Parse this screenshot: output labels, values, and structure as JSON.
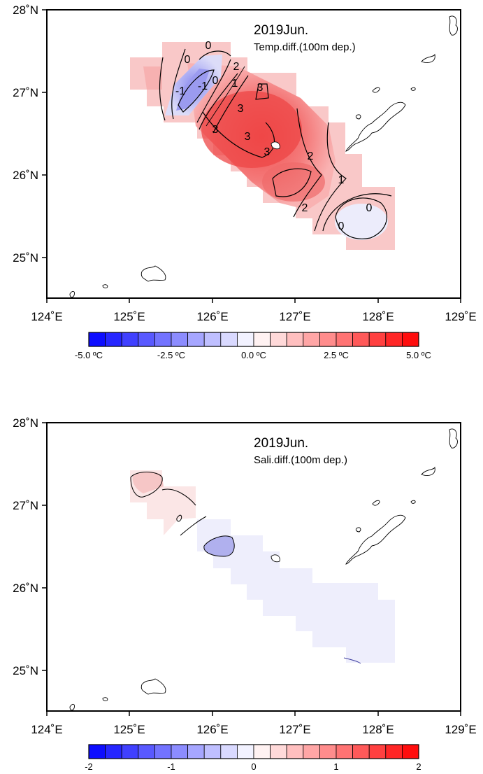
{
  "panels": [
    {
      "title": "2019Jun.",
      "subtitle": "Temp.diff.(100m dep.)",
      "lat_labels": [
        "28˚N",
        "27˚N",
        "26˚N",
        "25˚N"
      ],
      "lon_labels": [
        "124˚E",
        "125˚E",
        "126˚E",
        "127˚E",
        "128˚E",
        "129˚E"
      ],
      "contour_labels": [
        "0",
        "0",
        "-1",
        "-1",
        "0",
        "1",
        "2",
        "3",
        "3",
        "3",
        "3",
        "3",
        "2",
        "1",
        "2",
        "0",
        "0"
      ],
      "colorbar": {
        "min": -5.0,
        "max": 5.0,
        "step": 0.5,
        "labels": [
          "-5.0 ºC",
          "-2.5 ºC",
          "0.0 ºC",
          "2.5 ºC",
          "5.0 ºC"
        ]
      }
    },
    {
      "title": "2019Jun.",
      "subtitle": "Sali.diff.(100m dep.)",
      "lat_labels": [
        "28˚N",
        "27˚N",
        "26˚N",
        "25˚N"
      ],
      "lon_labels": [
        "124˚E",
        "125˚E",
        "126˚E",
        "127˚E",
        "128˚E",
        "129˚E"
      ],
      "colorbar": {
        "min": -2,
        "max": 2,
        "step": 0.2,
        "labels": [
          "-2",
          "-1",
          "0",
          "1",
          "2"
        ]
      }
    }
  ],
  "colors": {
    "negative": "#0000ff",
    "positive": "#ff0000",
    "neutral": "#ffffff"
  }
}
